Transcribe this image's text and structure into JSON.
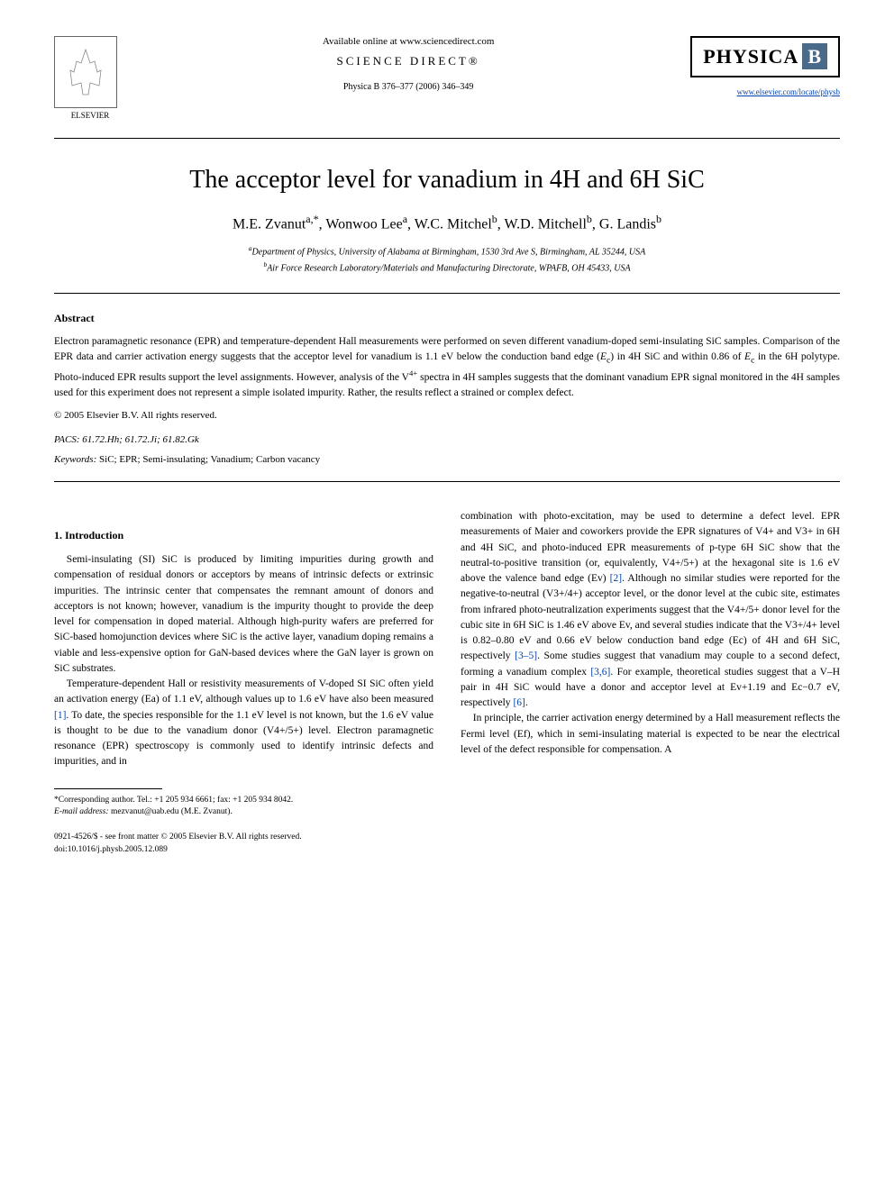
{
  "header": {
    "available_online": "Available online at www.sciencedirect.com",
    "science_direct": "SCIENCE DIRECT®",
    "journal_ref": "Physica B 376–377 (2006) 346–349",
    "elsevier_label": "ELSEVIER",
    "physica_label": "PHYSICA",
    "physica_b": "B",
    "journal_link": "www.elsevier.com/locate/physb"
  },
  "title": "The acceptor level for vanadium in 4H and 6H SiC",
  "authors_html": "M.E. Zvanut<sup>a,*</sup>, Wonwoo Lee<sup>a</sup>, W.C. Mitchel<sup>b</sup>, W.D. Mitchell<sup>b</sup>, G. Landis<sup>b</sup>",
  "affiliations": {
    "a": "Department of Physics, University of Alabama at Birmingham, 1530 3rd Ave S, Birmingham, AL 35244, USA",
    "b": "Air Force Research Laboratory/Materials and Manufacturing Directorate, WPAFB, OH 45433, USA"
  },
  "abstract_heading": "Abstract",
  "abstract_text": "Electron paramagnetic resonance (EPR) and temperature-dependent Hall measurements were performed on seven different vanadium-doped semi-insulating SiC samples. Comparison of the EPR data and carrier activation energy suggests that the acceptor level for vanadium is 1.1 eV below the conduction band edge (Ec) in 4H SiC and within 0.86 of Ec in the 6H polytype. Photo-induced EPR results support the level assignments. However, analysis of the V4+ spectra in 4H samples suggests that the dominant vanadium EPR signal monitored in the 4H samples used for this experiment does not represent a simple isolated impurity. Rather, the results reflect a strained or complex defect.",
  "copyright": "© 2005 Elsevier B.V. All rights reserved.",
  "pacs_label": "PACS:",
  "pacs": "61.72.Hh; 61.72.Ji; 61.82.Gk",
  "keywords_label": "Keywords:",
  "keywords": "SiC; EPR; Semi-insulating; Vanadium; Carbon vacancy",
  "intro_heading": "1. Introduction",
  "left_col": {
    "p1": "Semi-insulating (SI) SiC is produced by limiting impurities during growth and compensation of residual donors or acceptors by means of intrinsic defects or extrinsic impurities. The intrinsic center that compensates the remnant amount of donors and acceptors is not known; however, vanadium is the impurity thought to provide the deep level for compensation in doped material. Although high-purity wafers are preferred for SiC-based homojunction devices where SiC is the active layer, vanadium doping remains a viable and less-expensive option for GaN-based devices where the GaN layer is grown on SiC substrates.",
    "p2_a": "Temperature-dependent Hall or resistivity measurements of V-doped SI SiC often yield an activation energy (Ea) of 1.1 eV, although values up to 1.6 eV have also been measured ",
    "p2_ref1": "[1]",
    "p2_b": ". To date, the species responsible for the 1.1 eV level is not known, but the 1.6 eV value is thought to be due to the vanadium donor (V4+/5+) level. Electron paramagnetic resonance (EPR) spectroscopy is commonly used to identify intrinsic defects and impurities, and in"
  },
  "right_col": {
    "p1_a": "combination with photo-excitation, may be used to determine a defect level. EPR measurements of Maier and coworkers provide the EPR signatures of V4+ and V3+ in 6H and 4H SiC, and photo-induced EPR measurements of p-type 6H SiC show that the neutral-to-positive transition (or, equivalently, V4+/5+) at the hexagonal site is 1.6 eV above the valence band edge (Ev) ",
    "p1_ref2": "[2]",
    "p1_b": ". Although no similar studies were reported for the negative-to-neutral (V3+/4+) acceptor level, or the donor level at the cubic site, estimates from infrared photo-neutralization experiments suggest that the V4+/5+ donor level for the cubic site in 6H SiC is 1.46 eV above Ev, and several studies indicate that the V3+/4+ level is 0.82–0.80 eV and 0.66 eV below conduction band edge (Ec) of 4H and 6H SiC, respectively ",
    "p1_ref35": "[3–5]",
    "p1_c": ". Some studies suggest that vanadium may couple to a second defect, forming a vanadium complex ",
    "p1_ref36": "[3,6]",
    "p1_d": ". For example, theoretical studies suggest that a V–H pair in 4H SiC would have a donor and acceptor level at Ev+1.19 and Ec−0.7 eV, respectively ",
    "p1_ref6": "[6]",
    "p1_e": ".",
    "p2": "In principle, the carrier activation energy determined by a Hall measurement reflects the Fermi level (Ef), which in semi-insulating material is expected to be near the electrical level of the defect responsible for compensation. A"
  },
  "footnote": {
    "corr": "*Corresponding author. Tel.: +1 205 934 6661; fax: +1 205 934 8042.",
    "email_label": "E-mail address:",
    "email": "mezvanut@uab.edu (M.E. Zvanut)."
  },
  "bottom": {
    "issn": "0921-4526/$ - see front matter © 2005 Elsevier B.V. All rights reserved.",
    "doi": "doi:10.1016/j.physb.2005.12.089"
  },
  "style": {
    "link_color": "#0645ad",
    "background": "#ffffff",
    "text_color": "#000000",
    "title_fontsize": 28,
    "body_fontsize": 11.5,
    "physica_bg": "#4a6a8a"
  }
}
